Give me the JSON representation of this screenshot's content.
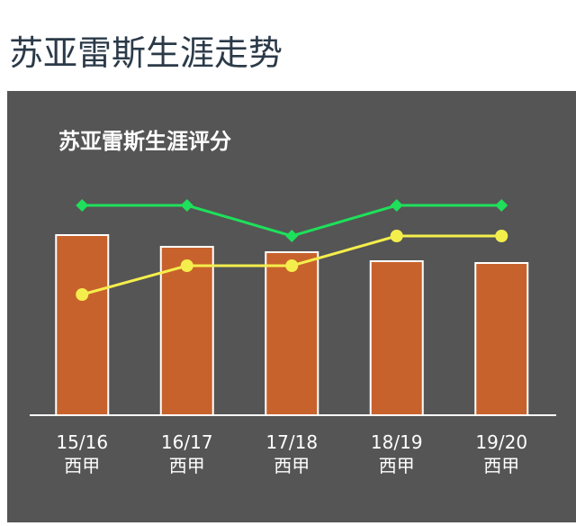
{
  "header": {
    "title": "苏亚雷斯生涯走势"
  },
  "chart_data": {
    "type": "bar",
    "title": "苏亚雷斯生涯评分",
    "categories": [
      "15/16\n西甲",
      "16/17\n西甲",
      "17/18\n西甲",
      "18/19\n西甲",
      "19/20\n西甲"
    ],
    "values": [
      10,
      9.35,
      9.05,
      8.55,
      8.45
    ],
    "color": "#c8622c",
    "series": [
      {
        "type": "line",
        "color": "#f4ee4c",
        "marker": "circle",
        "values": [
          6.7,
          8.3,
          8.3,
          9.95,
          9.95
        ]
      },
      {
        "type": "line",
        "color": "#1ee05a",
        "marker": "diamond",
        "values": [
          11.65,
          11.65,
          9.95,
          11.65,
          11.65
        ]
      }
    ]
  }
}
